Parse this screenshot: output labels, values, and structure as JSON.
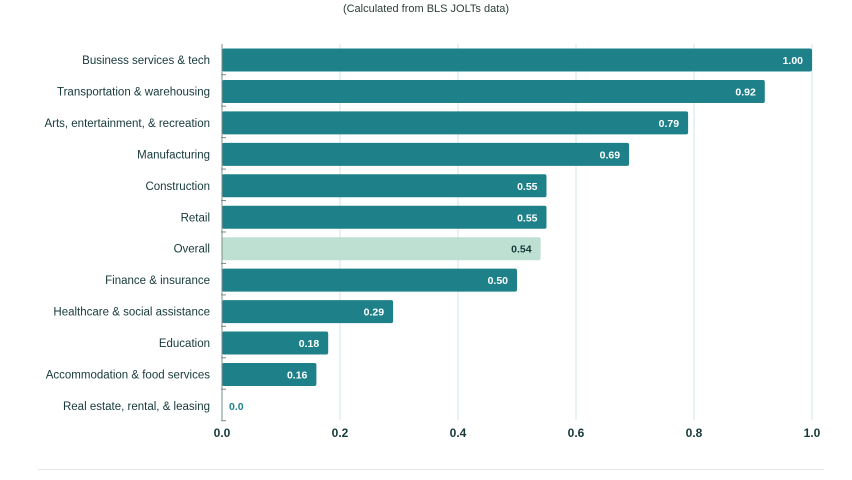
{
  "subtitle": "(Calculated from BLS JOLTs data)",
  "colors": {
    "bar": "#1e8189",
    "highlight": "#bde0d3",
    "grid": "#cfe6e4",
    "axis": "#7a8c8a",
    "label_text": "#16383a",
    "value_text_light": "#ffffff",
    "value_text_dark": "#16383a",
    "zero_value_text": "#1e8189",
    "tick_text": "#16383a",
    "footer_rule": "#e3e7e6"
  },
  "chart_data": {
    "type": "bar",
    "orientation": "horizontal",
    "title": "",
    "subtitle": "(Calculated from BLS JOLTs data)",
    "xlabel": "",
    "ylabel": "",
    "xlim": [
      0,
      1.0
    ],
    "xticks": [
      0.0,
      0.2,
      0.4,
      0.6,
      0.8,
      1.0
    ],
    "xtick_labels": [
      "0.0",
      "0.2",
      "0.4",
      "0.6",
      "0.8",
      "1.0"
    ],
    "grid": true,
    "highlight_category": "Overall",
    "categories": [
      "Business services & tech",
      "Transportation & warehousing",
      "Arts, entertainment, & recreation",
      "Manufacturing",
      "Construction",
      "Retail",
      "Overall",
      "Finance & insurance",
      "Healthcare & social assistance",
      "Education",
      "Accommodation & food services",
      "Real estate, rental, & leasing"
    ],
    "values": [
      1.0,
      0.92,
      0.79,
      0.69,
      0.55,
      0.55,
      0.54,
      0.5,
      0.29,
      0.18,
      0.16,
      0.0
    ],
    "value_labels": [
      "1.00",
      "0.92",
      "0.79",
      "0.69",
      "0.55",
      "0.55",
      "0.54",
      "0.50",
      "0.29",
      "0.18",
      "0.16",
      "0.0"
    ]
  }
}
